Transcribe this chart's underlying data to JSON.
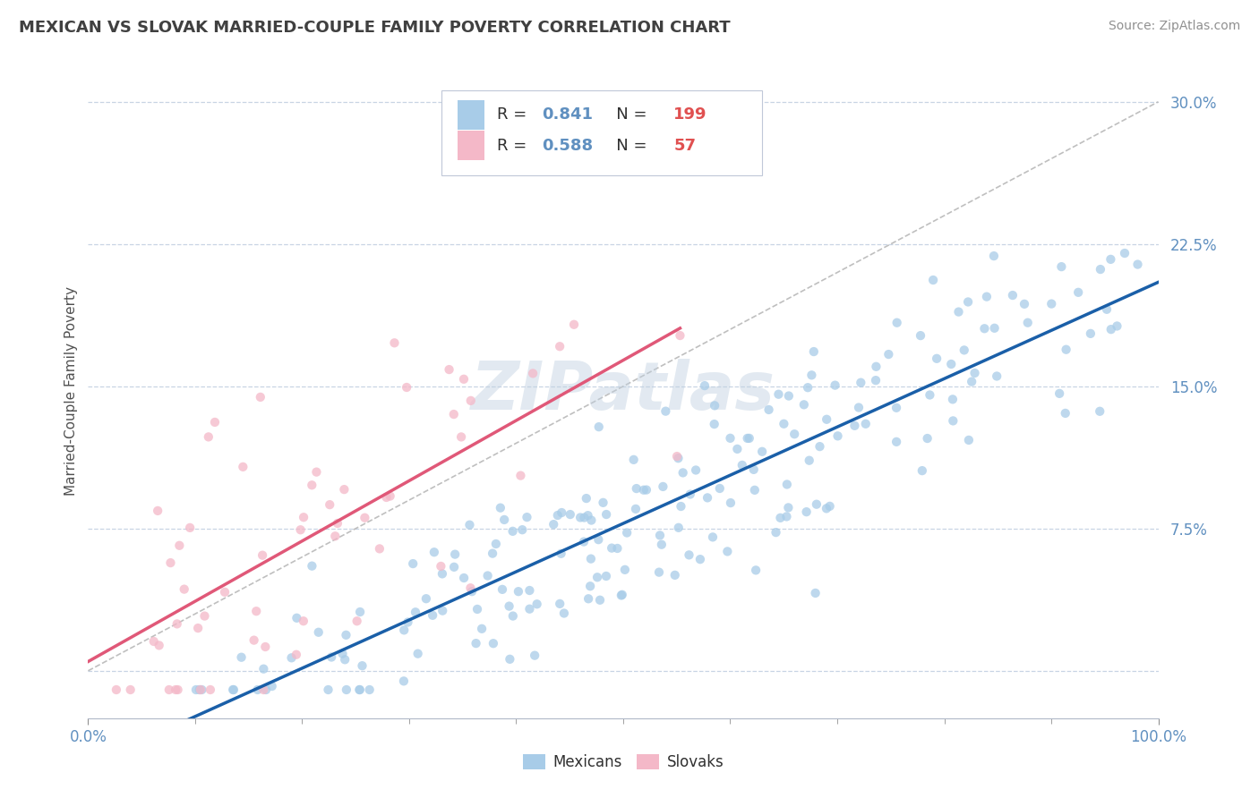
{
  "title": "MEXICAN VS SLOVAK MARRIED-COUPLE FAMILY POVERTY CORRELATION CHART",
  "source": "Source: ZipAtlas.com",
  "ylabel": "Married-Couple Family Poverty",
  "yticks": [
    0.0,
    0.075,
    0.15,
    0.225,
    0.3
  ],
  "ytick_labels": [
    "",
    "7.5%",
    "15.0%",
    "22.5%",
    "30.0%"
  ],
  "xrange": [
    0.0,
    1.0
  ],
  "yrange": [
    -0.025,
    0.32
  ],
  "mexican_R": 0.841,
  "mexican_N": 199,
  "slovak_R": 0.588,
  "slovak_N": 57,
  "mexican_color": "#a8cce8",
  "slovak_color": "#f4b8c8",
  "mexican_line_color": "#1a5fa8",
  "slovak_line_color": "#e05878",
  "diagonal_color": "#b8b8b8",
  "watermark": "ZIPatlas",
  "legend_labels": [
    "Mexicans",
    "Slovaks"
  ],
  "background_color": "#ffffff",
  "grid_color": "#c8d4e4",
  "title_color": "#404040",
  "tick_label_color": "#6090c0",
  "legend_R_color": "#6090c0",
  "legend_N_color": "#e05050"
}
